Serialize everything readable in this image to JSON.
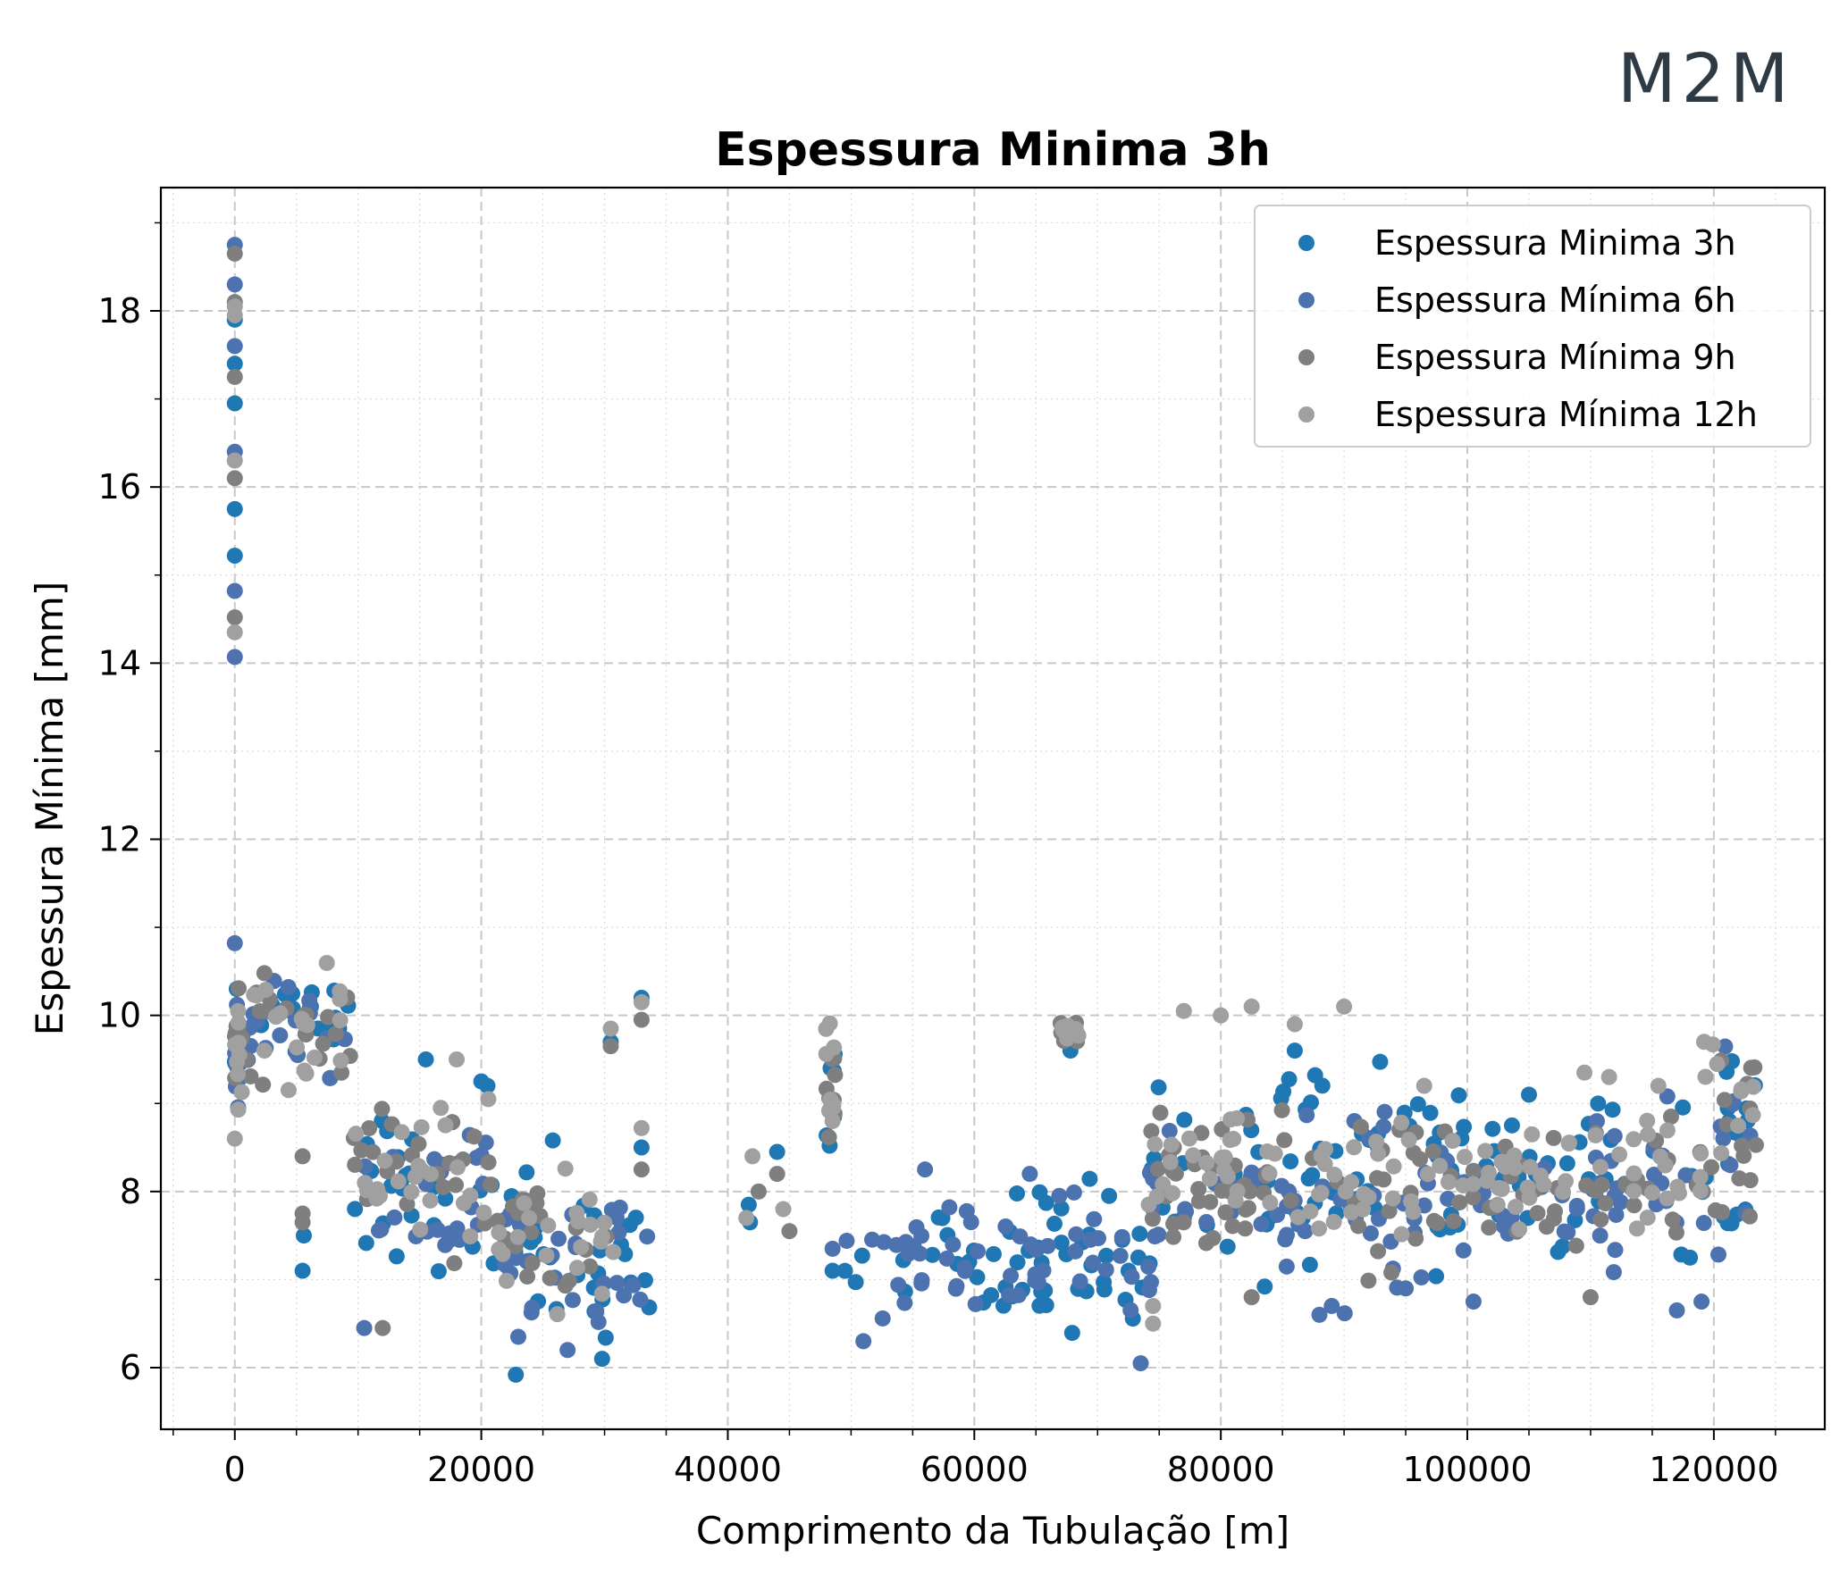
{
  "brand": {
    "logo_text": "M2M"
  },
  "chart_data": {
    "type": "scatter",
    "title": "Espessura Minima 3h",
    "xlabel": "Comprimento da Tubulação [m]",
    "ylabel": "Espessura Mínima [mm]",
    "xlim": [
      -6000,
      129000
    ],
    "ylim": [
      5.3,
      19.4
    ],
    "xticks": [
      0,
      20000,
      40000,
      60000,
      80000,
      100000,
      120000
    ],
    "yticks": [
      6,
      8,
      10,
      12,
      14,
      16,
      18
    ],
    "grid": true,
    "legend_position": "top-right",
    "series": [
      {
        "name": "Espessura Minima 3h",
        "color": "#1f77b4",
        "clusters": [
          {
            "x": [
              0,
              400
            ],
            "y": [
              8.6,
              10.8
            ]
          },
          {
            "x": [
              500,
              9600
            ],
            "y": [
              8.8,
              10.9
            ]
          },
          {
            "x": [
              9600,
              21000
            ],
            "y": [
              6.5,
              9.5
            ]
          },
          {
            "x": [
              21000,
              30800
            ],
            "y": [
              6.0,
              8.6
            ]
          },
          {
            "x": [
              30800,
              33800
            ],
            "y": [
              6.2,
              8.3
            ]
          },
          {
            "x": [
              48000,
              48700
            ],
            "y": [
              7.8,
              10.1
            ]
          },
          {
            "x": [
              49500,
              74500
            ],
            "y": [
              6.1,
              8.3
            ]
          },
          {
            "x": [
              74000,
              123500
            ],
            "y": [
              6.6,
              9.8
            ]
          },
          {
            "x": [
              120500,
              123500
            ],
            "y": [
              7.8,
              10.2
            ]
          }
        ],
        "outliers": [
          {
            "x": 0,
            "y": 17.4
          },
          {
            "x": 0,
            "y": 16.95
          },
          {
            "x": 0,
            "y": 15.75
          },
          {
            "x": 0,
            "y": 15.22
          },
          {
            "x": 0,
            "y": 17.9
          },
          {
            "x": 5500,
            "y": 7.1
          },
          {
            "x": 5600,
            "y": 7.5
          },
          {
            "x": 20000,
            "y": 9.25
          },
          {
            "x": 20500,
            "y": 9.2
          },
          {
            "x": 15500,
            "y": 9.5
          },
          {
            "x": 33000,
            "y": 10.2
          },
          {
            "x": 33000,
            "y": 8.5
          },
          {
            "x": 30500,
            "y": 9.7
          },
          {
            "x": 44000,
            "y": 8.45
          },
          {
            "x": 41700,
            "y": 7.85
          },
          {
            "x": 41800,
            "y": 7.65
          },
          {
            "x": 22800,
            "y": 5.92
          },
          {
            "x": 29800,
            "y": 6.1
          },
          {
            "x": 25800,
            "y": 8.58
          },
          {
            "x": 48500,
            "y": 7.1
          },
          {
            "x": 67800,
            "y": 9.6
          },
          {
            "x": 86000,
            "y": 9.6
          },
          {
            "x": 105000,
            "y": 9.1
          }
        ]
      },
      {
        "name": "Espessura Mínima 6h",
        "color": "#4c72b0",
        "clusters": [
          {
            "x": [
              0,
              400
            ],
            "y": [
              8.7,
              10.8
            ]
          },
          {
            "x": [
              500,
              9600
            ],
            "y": [
              8.7,
              10.9
            ]
          },
          {
            "x": [
              9600,
              21000
            ],
            "y": [
              6.7,
              9.3
            ]
          },
          {
            "x": [
              21000,
              30800
            ],
            "y": [
              6.1,
              8.5
            ]
          },
          {
            "x": [
              30800,
              33800
            ],
            "y": [
              6.1,
              8.2
            ]
          },
          {
            "x": [
              49500,
              74500
            ],
            "y": [
              6.1,
              8.3
            ]
          },
          {
            "x": [
              74000,
              120500
            ],
            "y": [
              6.5,
              9.4
            ]
          },
          {
            "x": [
              120500,
              123500
            ],
            "y": [
              7.0,
              10.1
            ]
          }
        ],
        "outliers": [
          {
            "x": 0,
            "y": 18.75
          },
          {
            "x": 0,
            "y": 18.3
          },
          {
            "x": 0,
            "y": 17.6
          },
          {
            "x": 0,
            "y": 16.4
          },
          {
            "x": 0,
            "y": 14.82
          },
          {
            "x": 0,
            "y": 14.07
          },
          {
            "x": 0,
            "y": 10.82
          },
          {
            "x": 10500,
            "y": 6.45
          },
          {
            "x": 23000,
            "y": 6.35
          },
          {
            "x": 27000,
            "y": 6.2
          },
          {
            "x": 48500,
            "y": 7.35
          },
          {
            "x": 51000,
            "y": 6.3
          },
          {
            "x": 56000,
            "y": 8.25
          },
          {
            "x": 64500,
            "y": 8.2
          },
          {
            "x": 73500,
            "y": 6.05
          },
          {
            "x": 88000,
            "y": 6.6
          },
          {
            "x": 89000,
            "y": 6.7
          },
          {
            "x": 95000,
            "y": 6.9
          },
          {
            "x": 100500,
            "y": 6.75
          },
          {
            "x": 117000,
            "y": 6.65
          },
          {
            "x": 119000,
            "y": 6.75
          }
        ]
      },
      {
        "name": "Espessura Mínima 9h",
        "color": "#7f7f7f",
        "clusters": [
          {
            "x": [
              0,
              400
            ],
            "y": [
              8.7,
              10.7
            ]
          },
          {
            "x": [
              500,
              9600
            ],
            "y": [
              8.9,
              10.9
            ]
          },
          {
            "x": [
              9600,
              21000
            ],
            "y": [
              7.0,
              9.4
            ]
          },
          {
            "x": [
              21000,
              30800
            ],
            "y": [
              6.4,
              8.5
            ]
          },
          {
            "x": [
              47900,
              48800
            ],
            "y": [
              8.2,
              10.0
            ]
          },
          {
            "x": [
              67000,
              68500
            ],
            "y": [
              9.5,
              10.05
            ]
          },
          {
            "x": [
              74000,
              123500
            ],
            "y": [
              6.8,
              9.4
            ]
          },
          {
            "x": [
              120500,
              123500
            ],
            "y": [
              7.8,
              10.2
            ]
          }
        ],
        "outliers": [
          {
            "x": 0,
            "y": 18.65
          },
          {
            "x": 0,
            "y": 18.1
          },
          {
            "x": 0,
            "y": 17.25
          },
          {
            "x": 0,
            "y": 16.1
          },
          {
            "x": 0,
            "y": 14.52
          },
          {
            "x": 5500,
            "y": 8.4
          },
          {
            "x": 5500,
            "y": 7.65
          },
          {
            "x": 5500,
            "y": 7.75
          },
          {
            "x": 12000,
            "y": 6.45
          },
          {
            "x": 30500,
            "y": 9.65
          },
          {
            "x": 33000,
            "y": 9.95
          },
          {
            "x": 33000,
            "y": 8.25
          },
          {
            "x": 44000,
            "y": 8.2
          },
          {
            "x": 42500,
            "y": 8.0
          },
          {
            "x": 45000,
            "y": 7.55
          },
          {
            "x": 82500,
            "y": 6.8
          },
          {
            "x": 110000,
            "y": 6.8
          }
        ]
      },
      {
        "name": "Espessura Mínima 12h",
        "color": "#a0a0a0",
        "clusters": [
          {
            "x": [
              0,
              400
            ],
            "y": [
              8.6,
              10.7
            ]
          },
          {
            "x": [
              500,
              9600
            ],
            "y": [
              8.8,
              10.9
            ]
          },
          {
            "x": [
              9600,
              21000
            ],
            "y": [
              7.0,
              9.5
            ]
          },
          {
            "x": [
              21000,
              30800
            ],
            "y": [
              6.5,
              8.5
            ]
          },
          {
            "x": [
              47900,
              48800
            ],
            "y": [
              8.4,
              10.2
            ]
          },
          {
            "x": [
              67000,
              68500
            ],
            "y": [
              9.6,
              10.05
            ]
          },
          {
            "x": [
              74000,
              119000
            ],
            "y": [
              7.2,
              9.2
            ]
          },
          {
            "x": [
              119000,
              123500
            ],
            "y": [
              7.8,
              10.3
            ]
          }
        ],
        "outliers": [
          {
            "x": 0,
            "y": 18.05
          },
          {
            "x": 0,
            "y": 17.95
          },
          {
            "x": 0,
            "y": 16.3
          },
          {
            "x": 0,
            "y": 14.35
          },
          {
            "x": 0,
            "y": 8.6
          },
          {
            "x": 18000,
            "y": 9.5
          },
          {
            "x": 30500,
            "y": 9.85
          },
          {
            "x": 33000,
            "y": 10.15
          },
          {
            "x": 33000,
            "y": 8.72
          },
          {
            "x": 41500,
            "y": 7.7
          },
          {
            "x": 42000,
            "y": 8.4
          },
          {
            "x": 44500,
            "y": 7.8
          },
          {
            "x": 48500,
            "y": 8.8
          },
          {
            "x": 74500,
            "y": 6.5
          },
          {
            "x": 74500,
            "y": 6.7
          },
          {
            "x": 77000,
            "y": 10.05
          },
          {
            "x": 80000,
            "y": 10.0
          },
          {
            "x": 82500,
            "y": 10.1
          },
          {
            "x": 86000,
            "y": 9.9
          },
          {
            "x": 90000,
            "y": 10.1
          },
          {
            "x": 96500,
            "y": 9.2
          },
          {
            "x": 109500,
            "y": 9.35
          },
          {
            "x": 111500,
            "y": 9.3
          },
          {
            "x": 115500,
            "y": 9.2
          }
        ]
      }
    ]
  }
}
